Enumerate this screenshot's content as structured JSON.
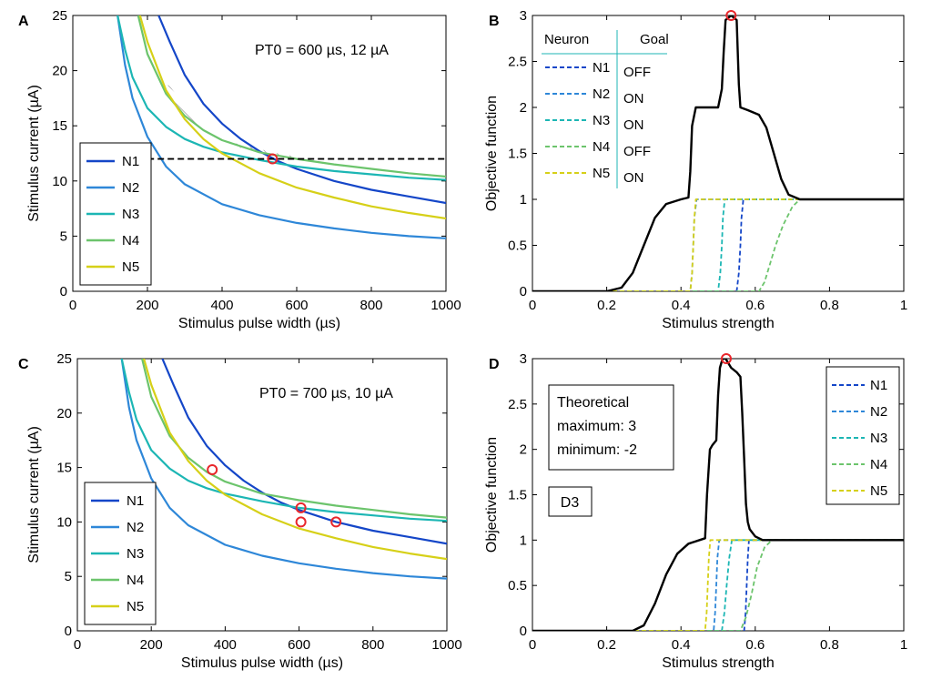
{
  "colors": {
    "N1": "#1446c8",
    "N2": "#2e87d8",
    "N3": "#1cb6b4",
    "N4": "#6cc46c",
    "N5": "#d6d018",
    "total": "#000000",
    "marker": "#e8262b"
  },
  "chart_data": [
    {
      "panel": "A",
      "type": "line",
      "xlabel": "Stimulus pulse width (µs)",
      "ylabel": "Stimulus current (µA)",
      "xlim": [
        0,
        1000
      ],
      "ylim": [
        0,
        25
      ],
      "xticks": [
        0,
        200,
        400,
        600,
        800,
        1000
      ],
      "yticks": [
        0,
        5,
        10,
        15,
        20,
        25
      ],
      "xtick_labels": [
        "0",
        "200",
        "400",
        "600",
        "800",
        "1000"
      ],
      "ytick_labels": [
        "0",
        "5",
        "10",
        "15",
        "20",
        "25"
      ],
      "legend_placement": "bottom-left",
      "legend": [
        "N1",
        "N2",
        "N3",
        "N4",
        "N5"
      ],
      "annotation": "PT0 = 600 µs, 12 µA",
      "series": [
        {
          "name": "N1",
          "x": [
            230,
            260,
            300,
            350,
            400,
            450,
            500,
            550,
            600,
            700,
            800,
            900,
            1000
          ],
          "y": [
            25,
            22.6,
            19.6,
            17.0,
            15.2,
            13.8,
            12.7,
            11.8,
            11.1,
            10.0,
            9.2,
            8.6,
            8.0
          ]
        },
        {
          "name": "N2",
          "x": [
            120,
            140,
            160,
            200,
            250,
            300,
            400,
            500,
            600,
            700,
            800,
            900,
            1000
          ],
          "y": [
            25,
            20.5,
            17.5,
            14.0,
            11.3,
            9.7,
            7.9,
            6.9,
            6.2,
            5.7,
            5.3,
            5.0,
            4.8
          ]
        },
        {
          "name": "N3",
          "x": [
            120,
            140,
            160,
            200,
            250,
            300,
            350,
            400,
            500,
            600,
            700,
            800,
            900,
            1000
          ],
          "y": [
            25,
            21.9,
            19.4,
            16.6,
            14.9,
            13.8,
            13.1,
            12.6,
            11.9,
            11.3,
            10.9,
            10.6,
            10.3,
            10.1
          ]
        },
        {
          "name": "N4",
          "x": [
            175,
            200,
            250,
            300,
            350,
            400,
            500,
            600,
            700,
            800,
            900,
            1000
          ],
          "y": [
            25,
            21.5,
            17.9,
            15.9,
            14.6,
            13.7,
            12.6,
            12.0,
            11.5,
            11.1,
            10.7,
            10.4
          ]
        },
        {
          "name": "N5",
          "x": [
            180,
            200,
            250,
            300,
            350,
            400,
            500,
            600,
            700,
            800,
            900,
            1000
          ],
          "y": [
            25,
            22.6,
            18.2,
            15.6,
            13.8,
            12.5,
            10.7,
            9.4,
            8.5,
            7.7,
            7.1,
            6.6
          ]
        }
      ],
      "reference_line": {
        "y": 12,
        "x_from": 120,
        "x_to": 1000,
        "style": "dashed"
      },
      "hatched_region": {
        "upper": {
          "x": [
            255,
            300,
            350,
            400,
            450,
            500,
            550,
            600,
            610
          ],
          "y": [
            18.8,
            16.8,
            14.9,
            13.7,
            13.3,
            12.9,
            12.5,
            12.2,
            12.1
          ]
        },
        "lower": {
          "x": [
            255,
            300,
            350,
            400,
            450,
            500,
            550,
            600,
            610
          ],
          "y": [
            17.4,
            15.6,
            14.6,
            13.7,
            13.0,
            12.55,
            12.3,
            12.05,
            12.0
          ]
        }
      },
      "markers": [
        {
          "x": 535,
          "y": 12
        }
      ]
    },
    {
      "panel": "B",
      "type": "line",
      "xlabel": "Stimulus strength",
      "ylabel": "Objective function",
      "xlim": [
        0,
        1
      ],
      "ylim": [
        0,
        3
      ],
      "xticks": [
        0,
        0.2,
        0.4,
        0.6,
        0.8,
        1
      ],
      "yticks": [
        0,
        0.5,
        1,
        1.5,
        2,
        2.5,
        3
      ],
      "xtick_labels": [
        "0",
        "0.2",
        "0.4",
        "0.6",
        "0.8",
        "1"
      ],
      "ytick_labels": [
        "0",
        "0.5",
        "1",
        "1.5",
        "2",
        "2.5",
        "3"
      ],
      "legend_placement": "top-left",
      "legend_headers": [
        "Neuron",
        "Goal"
      ],
      "legend": [
        {
          "name": "N1",
          "goal": "OFF"
        },
        {
          "name": "N2",
          "goal": "ON"
        },
        {
          "name": "N3",
          "goal": "ON"
        },
        {
          "name": "N4",
          "goal": "OFF"
        },
        {
          "name": "N5",
          "goal": "ON"
        }
      ],
      "series": [
        {
          "name": "N1",
          "style": "dashed",
          "x": [
            0,
            0.55,
            0.556,
            0.56,
            0.563,
            0.568,
            1
          ],
          "y": [
            0,
            0,
            0.2,
            0.5,
            0.8,
            1,
            1
          ]
        },
        {
          "name": "N2",
          "style": "dashed",
          "x": [
            0,
            0.425,
            0.43,
            0.433,
            0.436,
            0.442,
            1
          ],
          "y": [
            0,
            0,
            0.2,
            0.5,
            0.8,
            1,
            1
          ]
        },
        {
          "name": "N3",
          "style": "dashed",
          "x": [
            0,
            0.5,
            0.506,
            0.51,
            0.513,
            0.518,
            1
          ],
          "y": [
            0,
            0,
            0.2,
            0.5,
            0.8,
            1,
            1
          ]
        },
        {
          "name": "N4",
          "style": "dashed",
          "x": [
            0,
            0.61,
            0.625,
            0.64,
            0.655,
            0.675,
            0.7,
            0.72,
            1
          ],
          "y": [
            0,
            0,
            0.1,
            0.3,
            0.5,
            0.72,
            0.92,
            1,
            1
          ]
        },
        {
          "name": "N5",
          "style": "dashed",
          "x": [
            0,
            0.425,
            0.43,
            0.433,
            0.436,
            0.44,
            1
          ],
          "y": [
            0,
            0,
            0.2,
            0.5,
            0.8,
            1,
            1
          ]
        },
        {
          "name": "total",
          "style": "solid",
          "x": [
            0,
            0.2,
            0.24,
            0.27,
            0.3,
            0.33,
            0.36,
            0.4,
            0.42,
            0.425,
            0.43,
            0.44,
            0.48,
            0.5,
            0.51,
            0.515,
            0.52,
            0.535,
            0.55,
            0.553,
            0.556,
            0.56,
            0.58,
            0.61,
            0.63,
            0.65,
            0.67,
            0.69,
            0.72,
            1
          ],
          "y": [
            0,
            0,
            0.04,
            0.2,
            0.5,
            0.8,
            0.95,
            1.0,
            1.02,
            1.3,
            1.8,
            2.0,
            2.0,
            2.0,
            2.2,
            2.6,
            2.95,
            3.0,
            2.95,
            2.6,
            2.25,
            2.0,
            1.97,
            1.92,
            1.78,
            1.5,
            1.22,
            1.05,
            1.0,
            1.0
          ]
        }
      ],
      "markers": [
        {
          "x": 0.535,
          "y": 3
        }
      ]
    },
    {
      "panel": "C",
      "type": "line",
      "xlabel": "Stimulus pulse width (µs)",
      "ylabel": "Stimulus current (µA)",
      "xlim": [
        0,
        1000
      ],
      "ylim": [
        0,
        25
      ],
      "xticks": [
        0,
        200,
        400,
        600,
        800,
        1000
      ],
      "yticks": [
        0,
        5,
        10,
        15,
        20,
        25
      ],
      "xtick_labels": [
        "0",
        "200",
        "400",
        "600",
        "800",
        "1000"
      ],
      "ytick_labels": [
        "0",
        "5",
        "10",
        "15",
        "20",
        "25"
      ],
      "legend_placement": "bottom-left",
      "legend": [
        "N1",
        "N2",
        "N3",
        "N4",
        "N5"
      ],
      "annotation": "PT0 = 700 µs, 10 µA",
      "series": [
        {
          "name": "N1",
          "x": [
            230,
            260,
            300,
            350,
            400,
            450,
            500,
            550,
            600,
            700,
            800,
            900,
            1000
          ],
          "y": [
            25,
            22.6,
            19.6,
            17.0,
            15.2,
            13.8,
            12.7,
            11.8,
            11.1,
            10.0,
            9.2,
            8.6,
            8.0
          ]
        },
        {
          "name": "N2",
          "x": [
            120,
            140,
            160,
            200,
            250,
            300,
            400,
            500,
            600,
            700,
            800,
            900,
            1000
          ],
          "y": [
            25,
            20.5,
            17.5,
            14.0,
            11.3,
            9.7,
            7.9,
            6.9,
            6.2,
            5.7,
            5.3,
            5.0,
            4.8
          ]
        },
        {
          "name": "N3",
          "x": [
            120,
            140,
            160,
            200,
            250,
            300,
            350,
            400,
            500,
            600,
            700,
            800,
            900,
            1000
          ],
          "y": [
            25,
            21.9,
            19.4,
            16.6,
            14.9,
            13.8,
            13.1,
            12.6,
            11.9,
            11.3,
            10.9,
            10.6,
            10.3,
            10.1
          ]
        },
        {
          "name": "N4",
          "x": [
            175,
            200,
            250,
            300,
            350,
            400,
            500,
            600,
            700,
            800,
            900,
            1000
          ],
          "y": [
            25,
            21.5,
            17.9,
            15.9,
            14.6,
            13.7,
            12.6,
            12.0,
            11.5,
            11.1,
            10.7,
            10.4
          ]
        },
        {
          "name": "N5",
          "x": [
            180,
            200,
            250,
            300,
            350,
            400,
            500,
            600,
            700,
            800,
            900,
            1000
          ],
          "y": [
            25,
            22.6,
            18.2,
            15.6,
            13.8,
            12.5,
            10.7,
            9.4,
            8.5,
            7.7,
            7.1,
            6.6
          ]
        }
      ],
      "markers": [
        {
          "x": 365,
          "y": 14.8
        },
        {
          "x": 605,
          "y": 11.3
        },
        {
          "x": 605,
          "y": 10.0
        },
        {
          "x": 700,
          "y": 10.0
        }
      ]
    },
    {
      "panel": "D",
      "type": "line",
      "xlabel": "Stimulus strength",
      "ylabel": "Objective function",
      "xlim": [
        0,
        1
      ],
      "ylim": [
        0,
        3
      ],
      "xticks": [
        0,
        0.2,
        0.4,
        0.6,
        0.8,
        1
      ],
      "yticks": [
        0,
        0.5,
        1,
        1.5,
        2,
        2.5,
        3
      ],
      "xtick_labels": [
        "0",
        "0.2",
        "0.4",
        "0.6",
        "0.8",
        "1"
      ],
      "ytick_labels": [
        "0",
        "0.5",
        "1",
        "1.5",
        "2",
        "2.5",
        "3"
      ],
      "legend_placement": "top-right",
      "legend": [
        "N1",
        "N2",
        "N3",
        "N4",
        "N5"
      ],
      "info_box": [
        "Theoretical",
        "maximum: 3",
        "minimum: -2"
      ],
      "tag_box": "D3",
      "series": [
        {
          "name": "N1",
          "style": "dashed",
          "x": [
            0,
            0.57,
            0.574,
            0.577,
            0.58,
            0.583,
            1
          ],
          "y": [
            0,
            0,
            0.2,
            0.5,
            0.8,
            1,
            1
          ]
        },
        {
          "name": "N2",
          "style": "dashed",
          "x": [
            0,
            0.488,
            0.492,
            0.495,
            0.498,
            0.503,
            1
          ],
          "y": [
            0,
            0,
            0.2,
            0.5,
            0.8,
            1,
            1
          ]
        },
        {
          "name": "N3",
          "style": "dashed",
          "x": [
            0,
            0.51,
            0.517,
            0.523,
            0.53,
            0.537,
            1
          ],
          "y": [
            0,
            0,
            0.2,
            0.5,
            0.8,
            1,
            1
          ]
        },
        {
          "name": "N4",
          "style": "dashed",
          "x": [
            0,
            0.56,
            0.575,
            0.59,
            0.605,
            0.625,
            0.645,
            1
          ],
          "y": [
            0,
            0,
            0.15,
            0.4,
            0.7,
            0.92,
            1,
            1
          ]
        },
        {
          "name": "N5",
          "style": "dashed",
          "x": [
            0,
            0.465,
            0.469,
            0.472,
            0.475,
            0.479,
            1
          ],
          "y": [
            0,
            0,
            0.2,
            0.5,
            0.8,
            1,
            1
          ]
        },
        {
          "name": "total",
          "style": "solid",
          "x": [
            0,
            0.27,
            0.3,
            0.33,
            0.36,
            0.39,
            0.42,
            0.45,
            0.465,
            0.47,
            0.478,
            0.485,
            0.495,
            0.5,
            0.505,
            0.512,
            0.52,
            0.535,
            0.55,
            0.56,
            0.565,
            0.57,
            0.575,
            0.58,
            0.585,
            0.6,
            0.62,
            0.64,
            1
          ],
          "y": [
            0,
            0,
            0.06,
            0.3,
            0.62,
            0.85,
            0.96,
            1.0,
            1.02,
            1.5,
            2.0,
            2.05,
            2.1,
            2.6,
            2.9,
            3.0,
            3.0,
            2.9,
            2.85,
            2.8,
            2.4,
            1.9,
            1.4,
            1.2,
            1.12,
            1.04,
            1.0,
            1.0,
            1.0
          ]
        }
      ],
      "markers": [
        {
          "x": 0.522,
          "y": 3
        }
      ]
    }
  ]
}
